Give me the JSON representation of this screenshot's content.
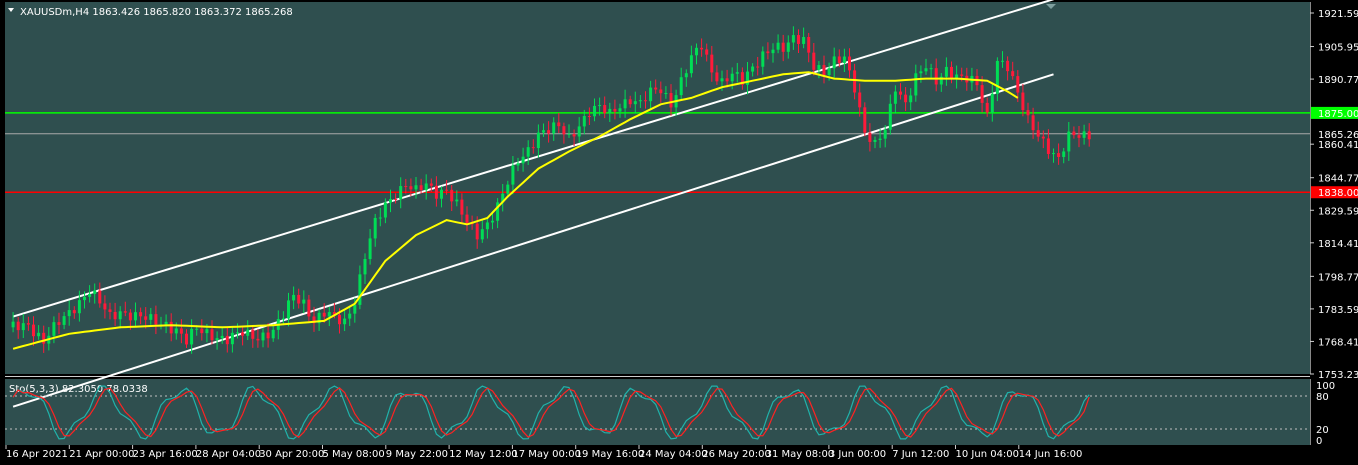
{
  "header": {
    "symbol_line": "XAUUSDm,H4  1863.426 1865.820 1863.372 1865.268",
    "oscillator_line": "Sto(5,3,3) 82.3050 78.0338"
  },
  "colors": {
    "background": "#2f4f4f",
    "bull": "#00dd55",
    "bear": "#ff1a3a",
    "ma": "#ffff00",
    "channel": "#ffffff",
    "resistance": "#00ff00",
    "support": "#ff0000",
    "stoch_main": "#20b2aa",
    "stoch_signal": "#ff2222"
  },
  "chart_data": {
    "type": "candlestick",
    "symbol": "XAUUSDm",
    "timeframe": "H4",
    "ohlc_last": {
      "open": 1863.426,
      "high": 1865.82,
      "low": 1863.372,
      "close": 1865.268
    },
    "price_axis": {
      "ylim": [
        1753.23,
        1925.0
      ],
      "ticks": [
        "1921.590",
        "1905.950",
        "1890.770",
        "1875.000",
        "1865.268",
        "1860.410",
        "1844.770",
        "1838.000",
        "1829.590",
        "1814.410",
        "1798.770",
        "1783.590",
        "1768.410",
        "1753.230"
      ]
    },
    "time_axis": {
      "labels": [
        "16 Apr 2021",
        "21 Apr 00:00",
        "23 Apr 16:00",
        "28 Apr 04:00",
        "30 Apr 20:00",
        "5 May 08:00",
        "9 May 22:00",
        "12 May 12:00",
        "17 May 00:00",
        "19 May 16:00",
        "24 May 04:00",
        "26 May 20:00",
        "31 May 08:00",
        "3 Jun 00:00",
        "7 Jun 12:00",
        "10 Jun 04:00",
        "14 Jun 16:00"
      ]
    },
    "horizontal_lines": [
      {
        "price": 1875.0,
        "label": "1875.000",
        "color": "#00ff00"
      },
      {
        "price": 1838.0,
        "label": "1838.000",
        "color": "#ff0000"
      }
    ],
    "current_price": {
      "price": 1865.268,
      "label": "1865.268"
    },
    "channel_upper": [
      [
        1,
        1780.0
      ],
      [
        205,
        1928.0
      ]
    ],
    "channel_lower": [
      [
        1,
        1738.0
      ],
      [
        205,
        1893.0
      ]
    ],
    "ma_path": [
      [
        1,
        1765
      ],
      [
        12,
        1772
      ],
      [
        22,
        1775
      ],
      [
        32,
        1776
      ],
      [
        42,
        1775
      ],
      [
        52,
        1776
      ],
      [
        62,
        1778
      ],
      [
        68,
        1786
      ],
      [
        74,
        1806
      ],
      [
        80,
        1818
      ],
      [
        86,
        1825
      ],
      [
        90,
        1823
      ],
      [
        94,
        1826
      ],
      [
        98,
        1836
      ],
      [
        104,
        1849
      ],
      [
        110,
        1857
      ],
      [
        116,
        1864
      ],
      [
        122,
        1872
      ],
      [
        128,
        1879
      ],
      [
        134,
        1882
      ],
      [
        140,
        1887
      ],
      [
        146,
        1890
      ],
      [
        152,
        1893
      ],
      [
        157,
        1894
      ],
      [
        162,
        1891
      ],
      [
        168,
        1890
      ],
      [
        174,
        1890
      ],
      [
        180,
        1891
      ],
      [
        186,
        1891
      ],
      [
        192,
        1890
      ],
      [
        196,
        1885
      ],
      [
        198,
        1882
      ]
    ],
    "price_path": [
      [
        1,
        1775
      ],
      [
        4,
        1777
      ],
      [
        7,
        1768
      ],
      [
        10,
        1777
      ],
      [
        13,
        1785
      ],
      [
        16,
        1792
      ],
      [
        18,
        1786
      ],
      [
        20,
        1780
      ],
      [
        22,
        1783
      ],
      [
        25,
        1780
      ],
      [
        28,
        1778
      ],
      [
        31,
        1777
      ],
      [
        33,
        1774
      ],
      [
        35,
        1768
      ],
      [
        37,
        1774
      ],
      [
        40,
        1772
      ],
      [
        43,
        1769
      ],
      [
        46,
        1772
      ],
      [
        49,
        1771
      ],
      [
        52,
        1773
      ],
      [
        54,
        1780
      ],
      [
        56,
        1790
      ],
      [
        58,
        1787
      ],
      [
        60,
        1778
      ],
      [
        62,
        1781
      ],
      [
        64,
        1779
      ],
      [
        66,
        1778
      ],
      [
        68,
        1788
      ],
      [
        70,
        1808
      ],
      [
        72,
        1823
      ],
      [
        74,
        1832
      ],
      [
        76,
        1838
      ],
      [
        78,
        1842
      ],
      [
        80,
        1838
      ],
      [
        82,
        1841
      ],
      [
        84,
        1838
      ],
      [
        86,
        1840
      ],
      [
        88,
        1832
      ],
      [
        90,
        1823
      ],
      [
        92,
        1818
      ],
      [
        94,
        1824
      ],
      [
        96,
        1832
      ],
      [
        98,
        1842
      ],
      [
        100,
        1852
      ],
      [
        102,
        1858
      ],
      [
        104,
        1866
      ],
      [
        106,
        1867
      ],
      [
        108,
        1868
      ],
      [
        110,
        1863
      ],
      [
        112,
        1870
      ],
      [
        114,
        1876
      ],
      [
        116,
        1877
      ],
      [
        118,
        1874
      ],
      [
        120,
        1879
      ],
      [
        122,
        1882
      ],
      [
        124,
        1879
      ],
      [
        126,
        1884
      ],
      [
        128,
        1886
      ],
      [
        130,
        1880
      ],
      [
        132,
        1890
      ],
      [
        134,
        1900
      ],
      [
        136,
        1906
      ],
      [
        138,
        1895
      ],
      [
        140,
        1890
      ],
      [
        142,
        1893
      ],
      [
        144,
        1889
      ],
      [
        146,
        1896
      ],
      [
        148,
        1903
      ],
      [
        150,
        1906
      ],
      [
        152,
        1904
      ],
      [
        154,
        1909
      ],
      [
        156,
        1910
      ],
      [
        158,
        1898
      ],
      [
        160,
        1893
      ],
      [
        162,
        1898
      ],
      [
        164,
        1901
      ],
      [
        166,
        1888
      ],
      [
        168,
        1866
      ],
      [
        170,
        1859
      ],
      [
        172,
        1867
      ],
      [
        174,
        1888
      ],
      [
        176,
        1880
      ],
      [
        178,
        1891
      ],
      [
        180,
        1896
      ],
      [
        182,
        1890
      ],
      [
        184,
        1896
      ],
      [
        186,
        1892
      ],
      [
        188,
        1890
      ],
      [
        190,
        1888
      ],
      [
        192,
        1874
      ],
      [
        194,
        1900
      ],
      [
        196,
        1896
      ],
      [
        198,
        1883
      ],
      [
        200,
        1872
      ],
      [
        202,
        1866
      ],
      [
        204,
        1858
      ],
      [
        206,
        1852
      ],
      [
        208,
        1864
      ],
      [
        210,
        1866
      ],
      [
        212,
        1865
      ]
    ]
  },
  "stochastic": {
    "name": "Sto(5,3,3)",
    "main": 82.305,
    "signal": 78.0338,
    "levels": [
      80,
      20
    ],
    "scale_labels": [
      "100",
      "80",
      "20",
      "0"
    ],
    "ylim": [
      0,
      100
    ]
  }
}
